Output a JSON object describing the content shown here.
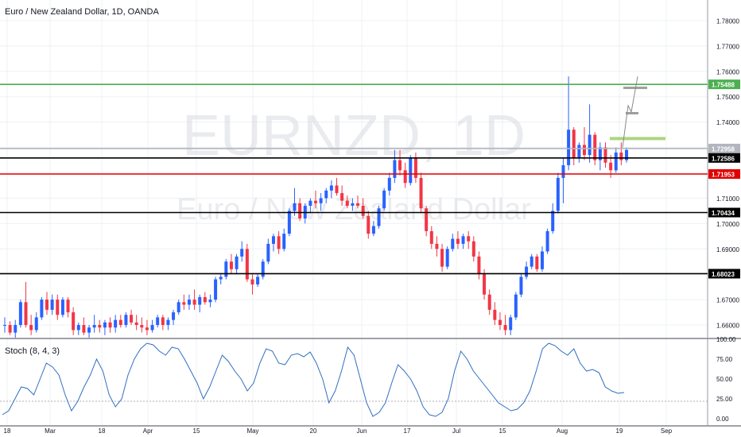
{
  "header": {
    "title": "Euro / New Zealand Dollar, 1D, OANDA"
  },
  "watermark": {
    "symbol": "EURNZD, 1D",
    "name": "Euro / New Zealand Dollar"
  },
  "stoch": {
    "label": "Stoch (8, 4, 3)"
  },
  "colors": {
    "up": "#2962ff",
    "down": "#f23645",
    "grid": "#eef0f3",
    "text": "#131722",
    "stoch": "#2f6fbf"
  },
  "chart_data": {
    "type": "candlestick",
    "title": "Euro / New Zealand Dollar, 1D, OANDA",
    "y_range": [
      1.655,
      1.785
    ],
    "price_ticks": [
      "1.78000",
      "1.77000",
      "1.76000",
      "1.75000",
      "1.74000",
      "1.73000",
      "1.72000",
      "1.71000",
      "1.70000",
      "1.69000",
      "1.68000",
      "1.67000",
      "1.66000"
    ],
    "x_ticks": [
      "18",
      "Mar",
      "18",
      "Apr",
      "15",
      "May",
      "20",
      "Jun",
      "17",
      "Jul",
      "15",
      "Aug",
      "19",
      "Sep"
    ],
    "levels": [
      {
        "label": "1.75488",
        "value": 1.75488,
        "color": "#4caf50"
      },
      {
        "label": "1.72958",
        "value": 1.72958,
        "color": "#b2b5be"
      },
      {
        "label": "1.72586",
        "value": 1.72586,
        "color": "#000000"
      },
      {
        "label": "1.71953",
        "value": 1.71953,
        "color": "#e00000"
      },
      {
        "label": "1.70434",
        "value": 1.70434,
        "color": "#000000"
      },
      {
        "label": "1.68023",
        "value": 1.68023,
        "color": "#000000"
      }
    ],
    "ohlc": [
      [
        1.66,
        1.663,
        1.657,
        1.66
      ],
      [
        1.66,
        1.6615,
        1.656,
        1.657
      ],
      [
        1.657,
        1.662,
        1.655,
        1.66
      ],
      [
        1.66,
        1.67,
        1.659,
        1.669
      ],
      [
        1.669,
        1.677,
        1.659,
        1.66
      ],
      [
        1.66,
        1.664,
        1.656,
        1.658
      ],
      [
        1.658,
        1.665,
        1.657,
        1.663
      ],
      [
        1.663,
        1.671,
        1.662,
        1.67
      ],
      [
        1.67,
        1.673,
        1.664,
        1.666
      ],
      [
        1.666,
        1.672,
        1.664,
        1.67
      ],
      [
        1.67,
        1.672,
        1.662,
        1.664
      ],
      [
        1.664,
        1.671,
        1.663,
        1.67
      ],
      [
        1.67,
        1.671,
        1.663,
        1.665
      ],
      [
        1.665,
        1.667,
        1.656,
        1.658
      ],
      [
        1.658,
        1.661,
        1.656,
        1.66
      ],
      [
        1.66,
        1.663,
        1.656,
        1.657
      ],
      [
        1.657,
        1.66,
        1.655,
        1.659
      ],
      [
        1.659,
        1.664,
        1.657,
        1.66
      ],
      [
        1.66,
        1.662,
        1.657,
        1.659
      ],
      [
        1.659,
        1.662,
        1.656,
        1.661
      ],
      [
        1.661,
        1.663,
        1.657,
        1.659
      ],
      [
        1.659,
        1.664,
        1.657,
        1.662
      ],
      [
        1.662,
        1.664,
        1.659,
        1.66
      ],
      [
        1.66,
        1.665,
        1.659,
        1.664
      ],
      [
        1.664,
        1.666,
        1.66,
        1.661
      ],
      [
        1.661,
        1.664,
        1.658,
        1.66
      ],
      [
        1.66,
        1.663,
        1.657,
        1.659
      ],
      [
        1.659,
        1.662,
        1.656,
        1.658
      ],
      [
        1.658,
        1.662,
        1.657,
        1.66
      ],
      [
        1.66,
        1.664,
        1.659,
        1.663
      ],
      [
        1.663,
        1.664,
        1.658,
        1.66
      ],
      [
        1.66,
        1.663,
        1.658,
        1.662
      ],
      [
        1.662,
        1.666,
        1.66,
        1.665
      ],
      [
        1.665,
        1.67,
        1.664,
        1.669
      ],
      [
        1.669,
        1.672,
        1.666,
        1.668
      ],
      [
        1.668,
        1.672,
        1.666,
        1.67
      ],
      [
        1.67,
        1.674,
        1.666,
        1.668
      ],
      [
        1.668,
        1.672,
        1.665,
        1.671
      ],
      [
        1.671,
        1.673,
        1.668,
        1.669
      ],
      [
        1.669,
        1.672,
        1.667,
        1.67
      ],
      [
        1.67,
        1.679,
        1.669,
        1.678
      ],
      [
        1.678,
        1.68,
        1.676,
        1.679
      ],
      [
        1.679,
        1.686,
        1.678,
        1.685
      ],
      [
        1.685,
        1.688,
        1.68,
        1.682
      ],
      [
        1.682,
        1.688,
        1.68,
        1.687
      ],
      [
        1.687,
        1.693,
        1.685,
        1.69
      ],
      [
        1.69,
        1.692,
        1.677,
        1.678
      ],
      [
        1.678,
        1.68,
        1.672,
        1.676
      ],
      [
        1.676,
        1.68,
        1.675,
        1.679
      ],
      [
        1.679,
        1.686,
        1.678,
        1.685
      ],
      [
        1.685,
        1.694,
        1.684,
        1.692
      ],
      [
        1.692,
        1.696,
        1.689,
        1.695
      ],
      [
        1.695,
        1.697,
        1.688,
        1.69
      ],
      [
        1.69,
        1.698,
        1.689,
        1.696
      ],
      [
        1.696,
        1.706,
        1.695,
        1.705
      ],
      [
        1.705,
        1.714,
        1.703,
        1.708
      ],
      [
        1.708,
        1.71,
        1.701,
        1.702
      ],
      [
        1.702,
        1.708,
        1.7,
        1.707
      ],
      [
        1.707,
        1.71,
        1.704,
        1.709
      ],
      [
        1.709,
        1.713,
        1.706,
        1.708
      ],
      [
        1.708,
        1.712,
        1.705,
        1.71
      ],
      [
        1.71,
        1.714,
        1.708,
        1.713
      ],
      [
        1.713,
        1.717,
        1.71,
        1.715
      ],
      [
        1.715,
        1.718,
        1.711,
        1.712
      ],
      [
        1.712,
        1.715,
        1.707,
        1.709
      ],
      [
        1.709,
        1.711,
        1.706,
        1.707
      ],
      [
        1.707,
        1.71,
        1.705,
        1.708
      ],
      [
        1.708,
        1.711,
        1.706,
        1.707
      ],
      [
        1.707,
        1.71,
        1.702,
        1.703
      ],
      [
        1.703,
        1.705,
        1.694,
        1.696
      ],
      [
        1.696,
        1.701,
        1.695,
        1.699
      ],
      [
        1.699,
        1.707,
        1.698,
        1.706
      ],
      [
        1.706,
        1.714,
        1.705,
        1.713
      ],
      [
        1.713,
        1.72,
        1.711,
        1.718
      ],
      [
        1.718,
        1.729,
        1.716,
        1.725
      ],
      [
        1.725,
        1.729,
        1.719,
        1.721
      ],
      [
        1.721,
        1.724,
        1.714,
        1.716
      ],
      [
        1.716,
        1.727,
        1.715,
        1.726
      ],
      [
        1.726,
        1.728,
        1.716,
        1.718
      ],
      [
        1.718,
        1.72,
        1.704,
        1.706
      ],
      [
        1.706,
        1.707,
        1.695,
        1.697
      ],
      [
        1.697,
        1.699,
        1.69,
        1.692
      ],
      [
        1.692,
        1.695,
        1.687,
        1.69
      ],
      [
        1.69,
        1.692,
        1.681,
        1.683
      ],
      [
        1.683,
        1.691,
        1.682,
        1.69
      ],
      [
        1.69,
        1.696,
        1.689,
        1.694
      ],
      [
        1.694,
        1.697,
        1.69,
        1.692
      ],
      [
        1.692,
        1.696,
        1.69,
        1.695
      ],
      [
        1.695,
        1.697,
        1.69,
        1.693
      ],
      [
        1.693,
        1.695,
        1.685,
        1.687
      ],
      [
        1.687,
        1.689,
        1.678,
        1.68
      ],
      [
        1.68,
        1.682,
        1.67,
        1.672
      ],
      [
        1.672,
        1.674,
        1.664,
        1.666
      ],
      [
        1.666,
        1.669,
        1.66,
        1.662
      ],
      [
        1.662,
        1.665,
        1.658,
        1.66
      ],
      [
        1.66,
        1.664,
        1.656,
        1.658
      ],
      [
        1.658,
        1.664,
        1.656,
        1.663
      ],
      [
        1.663,
        1.673,
        1.662,
        1.672
      ],
      [
        1.672,
        1.68,
        1.671,
        1.679
      ],
      [
        1.679,
        1.685,
        1.678,
        1.683
      ],
      [
        1.683,
        1.688,
        1.682,
        1.687
      ],
      [
        1.687,
        1.688,
        1.681,
        1.682
      ],
      [
        1.682,
        1.691,
        1.681,
        1.689
      ],
      [
        1.689,
        1.698,
        1.688,
        1.697
      ],
      [
        1.697,
        1.708,
        1.696,
        1.705
      ],
      [
        1.705,
        1.72,
        1.704,
        1.718
      ],
      [
        1.718,
        1.726,
        1.708,
        1.723
      ],
      [
        1.723,
        1.758,
        1.721,
        1.737
      ],
      [
        1.737,
        1.738,
        1.723,
        1.726
      ],
      [
        1.726,
        1.732,
        1.724,
        1.731
      ],
      [
        1.731,
        1.738,
        1.725,
        1.727
      ],
      [
        1.727,
        1.747,
        1.724,
        1.735
      ],
      [
        1.735,
        1.736,
        1.723,
        1.725
      ],
      [
        1.725,
        1.732,
        1.721,
        1.73
      ],
      [
        1.73,
        1.732,
        1.722,
        1.724
      ],
      [
        1.724,
        1.727,
        1.718,
        1.721
      ],
      [
        1.721,
        1.73,
        1.72,
        1.728
      ],
      [
        1.728,
        1.732,
        1.723,
        1.725
      ],
      [
        1.725,
        1.73,
        1.724,
        1.729
      ]
    ],
    "stoch_ticks": [
      "100.00",
      "75.00",
      "50.00",
      "25.00",
      "0.00"
    ],
    "stoch_range": [
      0,
      100
    ],
    "stoch_values": [
      5,
      10,
      25,
      40,
      38,
      30,
      50,
      70,
      65,
      55,
      30,
      10,
      22,
      40,
      55,
      75,
      60,
      30,
      15,
      25,
      55,
      75,
      88,
      95,
      93,
      85,
      80,
      90,
      88,
      75,
      60,
      45,
      25,
      40,
      60,
      80,
      72,
      60,
      50,
      35,
      45,
      70,
      88,
      85,
      70,
      68,
      80,
      82,
      78,
      84,
      70,
      50,
      20,
      35,
      60,
      90,
      80,
      50,
      20,
      3,
      8,
      20,
      45,
      68,
      60,
      50,
      35,
      15,
      5,
      3,
      8,
      25,
      60,
      85,
      75,
      60,
      50,
      40,
      30,
      20,
      15,
      10,
      12,
      20,
      35,
      60,
      88,
      95,
      92,
      85,
      80,
      88,
      70,
      60,
      62,
      58,
      40,
      35,
      32,
      33
    ]
  }
}
